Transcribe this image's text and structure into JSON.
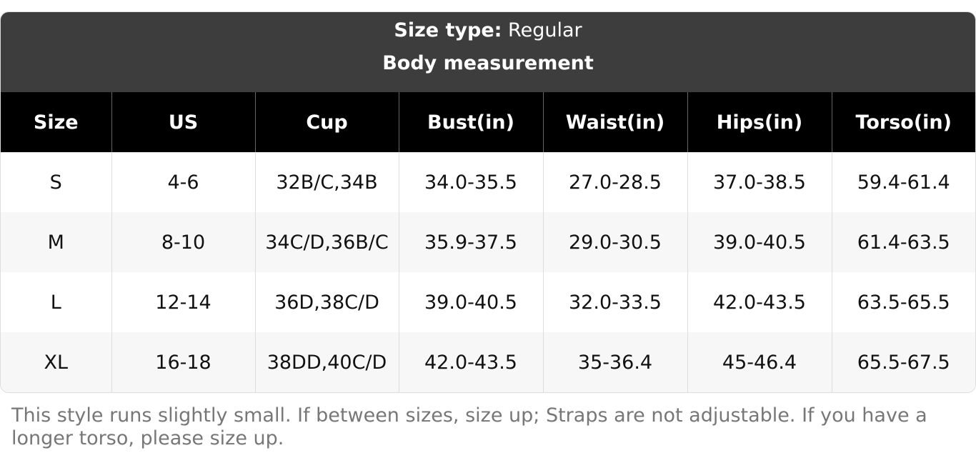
{
  "header": {
    "size_type_label": "Size type:",
    "size_type_value": "Regular",
    "subtitle": "Body measurement"
  },
  "table": {
    "columns": [
      "Size",
      "US",
      "Cup",
      "Bust(in)",
      "Waist(in)",
      "Hips(in)",
      "Torso(in)"
    ],
    "rows": [
      [
        "S",
        "4-6",
        "32B/C,34B",
        "34.0-35.5",
        "27.0-28.5",
        "37.0-38.5",
        "59.4-61.4"
      ],
      [
        "M",
        "8-10",
        "34C/D,36B/C",
        "35.9-37.5",
        "29.0-30.5",
        "39.0-40.5",
        "61.4-63.5"
      ],
      [
        "L",
        "12-14",
        "36D,38C/D",
        "39.0-40.5",
        "32.0-33.5",
        "42.0-43.5",
        "63.5-65.5"
      ],
      [
        "XL",
        "16-18",
        "38DD,40C/D",
        "42.0-43.5",
        "35-36.4",
        "45-46.4",
        "65.5-67.5"
      ]
    ]
  },
  "note": "This style runs slightly small. If between sizes, size up; Straps are not adjustable. If you have a longer torso, please size up."
}
